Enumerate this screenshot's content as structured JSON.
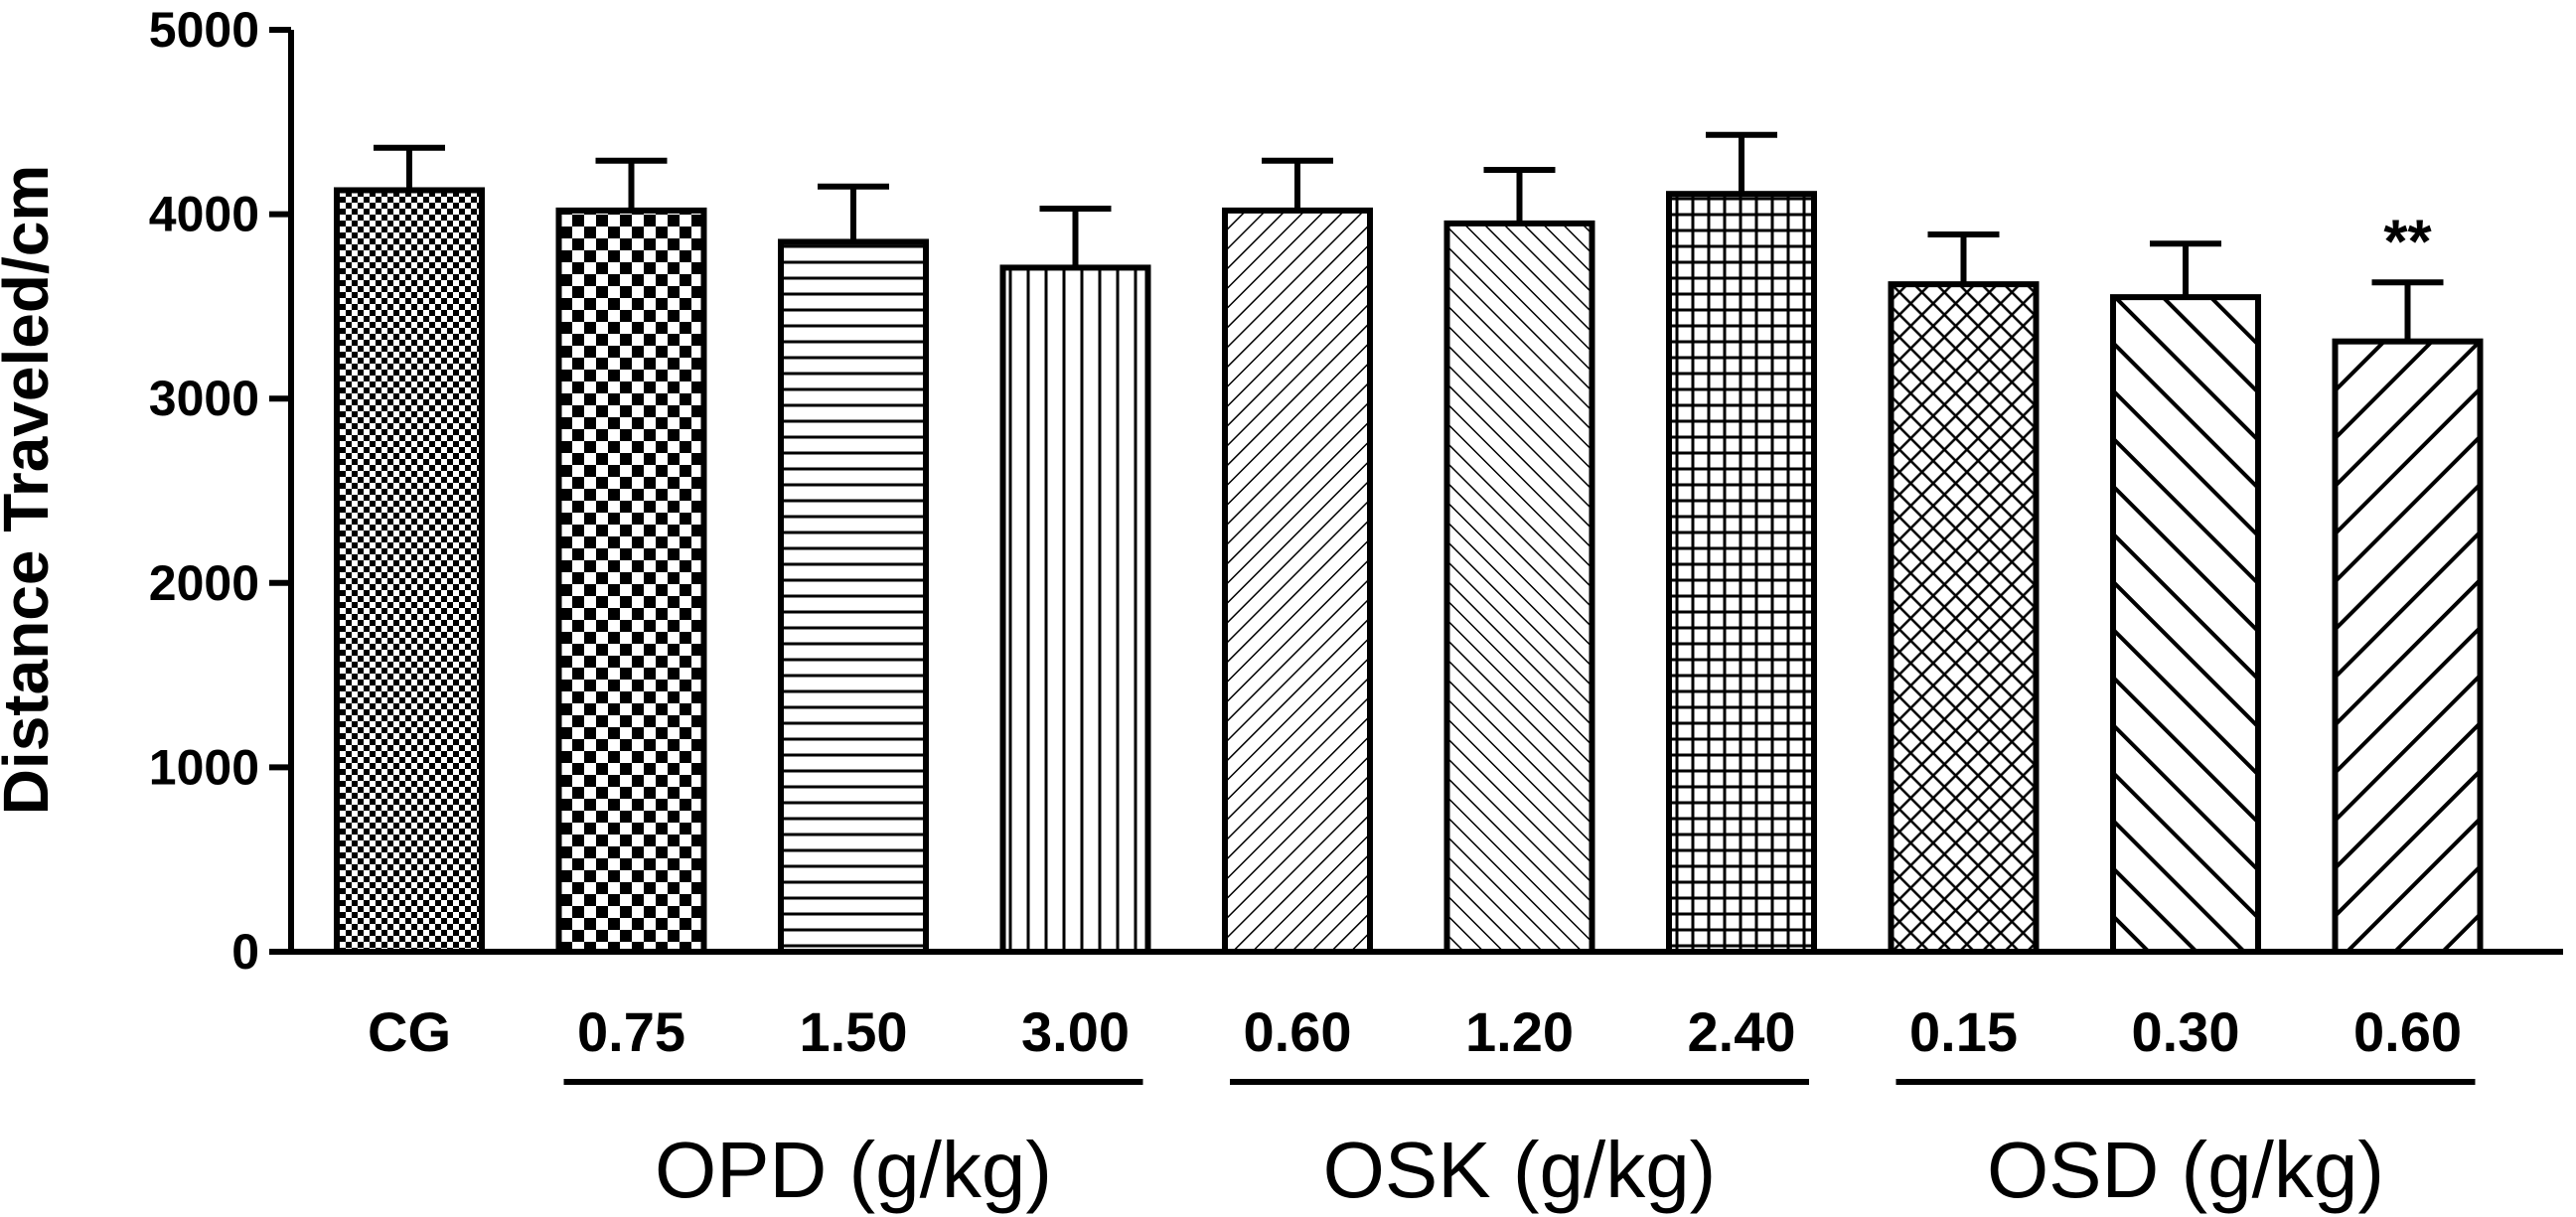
{
  "chart_data": {
    "type": "bar",
    "title": "",
    "xlabel": "",
    "ylabel": "Distance Traveled/cm",
    "ylim": [
      0,
      5000
    ],
    "yticks": [
      0,
      1000,
      2000,
      3000,
      4000,
      5000
    ],
    "categories": [
      "CG",
      "0.75",
      "1.50",
      "3.00",
      "0.60",
      "1.20",
      "2.40",
      "0.15",
      "0.30",
      "0.60"
    ],
    "values": [
      4130,
      4020,
      3850,
      3710,
      4020,
      3950,
      4110,
      3620,
      3550,
      3310
    ],
    "errors": [
      230,
      270,
      300,
      320,
      270,
      290,
      320,
      270,
      290,
      320
    ],
    "patterns": [
      "fine-checker",
      "checker",
      "horizontal",
      "vertical",
      "diag-fine",
      "diag-back-fine",
      "grid",
      "crosshatch",
      "diag-back-coarse",
      "diag-coarse"
    ],
    "groups": [
      {
        "label": "OPD (g/kg)",
        "from": 1,
        "to": 3
      },
      {
        "label": "OSK (g/kg)",
        "from": 4,
        "to": 6
      },
      {
        "label": "OSD (g/kg)",
        "from": 7,
        "to": 9
      }
    ],
    "annotations": [
      {
        "category_index": 9,
        "text": "**"
      }
    ],
    "grid": false,
    "legend": "none"
  }
}
